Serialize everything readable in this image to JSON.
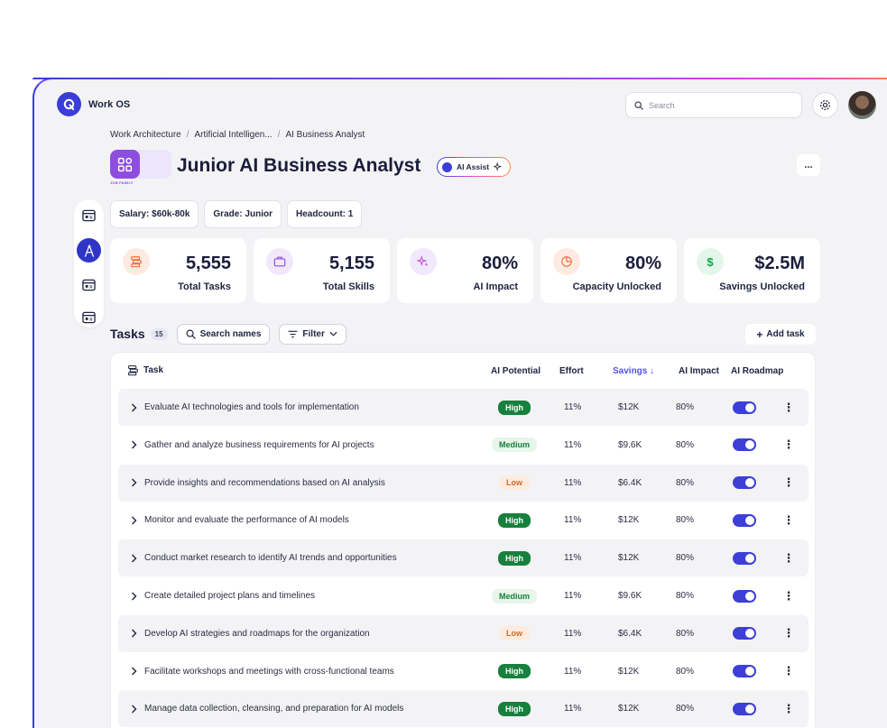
{
  "app": {
    "name": "Work OS"
  },
  "search": {
    "placeholder": "Search"
  },
  "breadcrumb": [
    "Work Architecture",
    "Artificial Intelligen...",
    "AI Business Analyst"
  ],
  "header": {
    "title": "Junior AI Business Analyst",
    "badge_label": "JOB FAMILY",
    "ai_assist_label": "AI Assist",
    "more_label": "..."
  },
  "chips": [
    "Salary: $60k-80k",
    "Grade: Junior",
    "Headcount: 1"
  ],
  "stats": [
    {
      "value": "5,555",
      "label": "Total Tasks",
      "icon": "layers-icon",
      "color": "#f26d3d"
    },
    {
      "value": "5,155",
      "label": "Total Skills",
      "icon": "briefcase-icon",
      "color": "#8d4ee0"
    },
    {
      "value": "80%",
      "label": "AI Impact",
      "icon": "sparkles-icon",
      "color": "#8d4ee0"
    },
    {
      "value": "80%",
      "label": "Capacity Unlocked",
      "icon": "pie-chart-icon",
      "color": "#f26d3d"
    },
    {
      "value": "$2.5M",
      "label": "Savings Unlocked",
      "icon": "dollar-icon",
      "color": "#16a34a"
    }
  ],
  "tasks": {
    "title": "Tasks",
    "count": "15",
    "search_label": "Search names",
    "filter_label": "Filter",
    "add_label": "Add task",
    "columns": [
      "Task",
      "AI Potential",
      "Effort",
      "Savings ↓",
      "AI Impact",
      "AI Roadmap"
    ],
    "rows": [
      {
        "name": "Evaluate AI technologies and tools for implementation",
        "potential": "High",
        "effort": "11%",
        "savings": "$12K",
        "impact": "80%",
        "roadmap": true
      },
      {
        "name": "Gather and analyze business requirements for AI projects",
        "potential": "Medium",
        "effort": "11%",
        "savings": "$9.6K",
        "impact": "80%",
        "roadmap": true
      },
      {
        "name": "Provide insights and recommendations based on AI analysis",
        "potential": "Low",
        "effort": "11%",
        "savings": "$6.4K",
        "impact": "80%",
        "roadmap": true
      },
      {
        "name": "Monitor and evaluate the performance of AI models",
        "potential": "High",
        "effort": "11%",
        "savings": "$12K",
        "impact": "80%",
        "roadmap": true
      },
      {
        "name": "Conduct market research to identify AI trends and opportunities",
        "potential": "High",
        "effort": "11%",
        "savings": "$12K",
        "impact": "80%",
        "roadmap": true
      },
      {
        "name": "Create detailed project plans and timelines",
        "potential": "Medium",
        "effort": "11%",
        "savings": "$9.6K",
        "impact": "80%",
        "roadmap": true
      },
      {
        "name": "Develop AI strategies and roadmaps for the organization",
        "potential": "Low",
        "effort": "11%",
        "savings": "$6.4K",
        "impact": "80%",
        "roadmap": true
      },
      {
        "name": "Facilitate workshops and meetings with cross-functional teams",
        "potential": "High",
        "effort": "11%",
        "savings": "$12K",
        "impact": "80%",
        "roadmap": true
      },
      {
        "name": "Manage data collection, cleansing, and preparation for AI models",
        "potential": "High",
        "effort": "11%",
        "savings": "$12K",
        "impact": "80%",
        "roadmap": true
      }
    ]
  },
  "colors": {
    "accent": "#3d3fd8",
    "high": "#16803c",
    "medium_bg": "#e7f5ea",
    "low_bg": "#fdecde",
    "low_text": "#d26a2a"
  }
}
